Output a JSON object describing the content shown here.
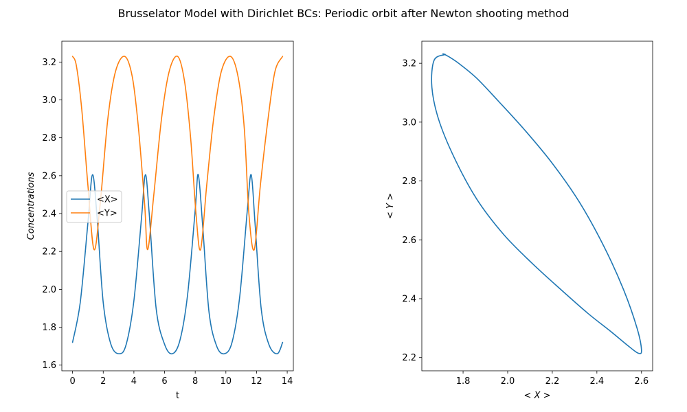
{
  "title": "Brusselator Model with Dirichlet BCs: Periodic orbit after Newton shooting method",
  "chart_data": [
    {
      "type": "line",
      "xlabel": "t",
      "ylabel": "Concentrations",
      "xlim": [
        -0.7,
        14.4
      ],
      "ylim": [
        1.57,
        3.31
      ],
      "xticks": [
        0,
        2,
        4,
        6,
        8,
        10,
        12,
        14
      ],
      "yticks": [
        1.6,
        1.8,
        2.0,
        2.2,
        2.4,
        2.6,
        2.8,
        3.0,
        3.2
      ],
      "xtick_labels": [
        "0",
        "2",
        "4",
        "6",
        "8",
        "10",
        "12",
        "14"
      ],
      "ytick_labels": [
        "1.6",
        "1.8",
        "2.0",
        "2.2",
        "2.4",
        "2.6",
        "2.8",
        "3.0",
        "3.2"
      ],
      "grid": false,
      "legend": {
        "position": "center-left",
        "entries": [
          "<X>",
          "<Y>"
        ]
      },
      "series": [
        {
          "name": "<X>",
          "color": "#1f77b4",
          "x": [
            0.0,
            0.5,
            1.0,
            1.3,
            1.6,
            2.0,
            2.5,
            3.05,
            3.5,
            4.0,
            4.5,
            4.75,
            5.0,
            5.45,
            6.0,
            6.5,
            7.0,
            7.5,
            8.0,
            8.2,
            8.5,
            8.9,
            9.4,
            9.9,
            10.4,
            10.9,
            11.4,
            11.65,
            11.9,
            12.3,
            12.8,
            13.35,
            13.7
          ],
          "y": [
            1.72,
            1.93,
            2.35,
            2.605,
            2.38,
            1.93,
            1.71,
            1.66,
            1.71,
            1.94,
            2.38,
            2.605,
            2.4,
            1.9,
            1.71,
            1.66,
            1.73,
            1.97,
            2.42,
            2.605,
            2.32,
            1.88,
            1.7,
            1.66,
            1.72,
            1.96,
            2.42,
            2.605,
            2.35,
            1.9,
            1.71,
            1.66,
            1.72
          ]
        },
        {
          "name": "<Y>",
          "color": "#ff7f0e",
          "x": [
            0.0,
            0.25,
            0.6,
            1.0,
            1.4,
            1.8,
            2.3,
            2.8,
            3.4,
            3.9,
            4.3,
            4.7,
            4.9,
            5.3,
            5.8,
            6.3,
            6.85,
            7.3,
            7.7,
            8.05,
            8.35,
            8.75,
            9.2,
            9.7,
            10.3,
            10.8,
            11.2,
            11.5,
            11.85,
            12.25,
            12.75,
            13.2,
            13.7
          ],
          "y": [
            3.23,
            3.18,
            2.95,
            2.55,
            2.21,
            2.45,
            2.9,
            3.15,
            3.23,
            3.12,
            2.85,
            2.45,
            2.21,
            2.5,
            2.9,
            3.15,
            3.23,
            3.1,
            2.8,
            2.4,
            2.21,
            2.55,
            2.9,
            3.15,
            3.23,
            3.12,
            2.85,
            2.4,
            2.21,
            2.55,
            2.9,
            3.15,
            3.23
          ]
        }
      ]
    },
    {
      "type": "line",
      "xlabel": "< X >",
      "ylabel": "< Y >",
      "xlim": [
        1.615,
        2.65
      ],
      "ylim": [
        2.155,
        3.275
      ],
      "xticks": [
        1.8,
        2.0,
        2.2,
        2.4,
        2.6
      ],
      "yticks": [
        2.2,
        2.4,
        2.6,
        2.8,
        3.0,
        3.2
      ],
      "xtick_labels": [
        "1.8",
        "2.0",
        "2.2",
        "2.4",
        "2.6"
      ],
      "ytick_labels": [
        "2.2",
        "2.4",
        "2.6",
        "2.8",
        "3.0",
        "3.2"
      ],
      "grid": false,
      "series": [
        {
          "color": "#1f77b4",
          "x": [
            1.72,
            1.67,
            1.66,
            1.69,
            1.76,
            1.86,
            1.98,
            2.11,
            2.24,
            2.36,
            2.46,
            2.54,
            2.585,
            2.6,
            2.58,
            2.52,
            2.43,
            2.32,
            2.2,
            2.08,
            1.96,
            1.86,
            1.78,
            1.73,
            1.71,
            1.72
          ],
          "y": [
            3.23,
            3.21,
            3.12,
            3.01,
            2.88,
            2.74,
            2.62,
            2.52,
            2.43,
            2.35,
            2.29,
            2.24,
            2.215,
            2.225,
            2.3,
            2.43,
            2.58,
            2.73,
            2.86,
            2.97,
            3.07,
            3.15,
            3.2,
            3.225,
            3.232,
            3.23
          ]
        }
      ]
    }
  ]
}
